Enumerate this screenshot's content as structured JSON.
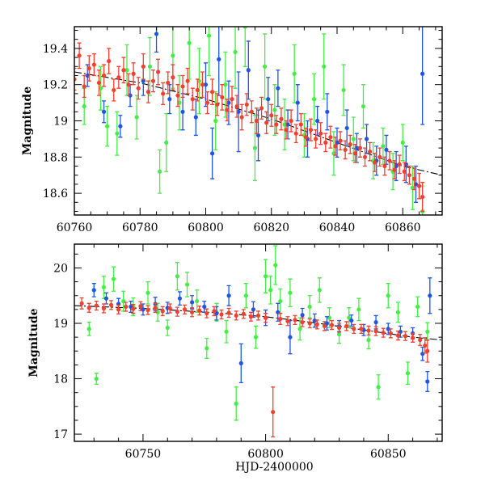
{
  "figure": {
    "colors": {
      "series_green": "#44ee44",
      "series_blue": "#1f55e0",
      "series_red": "#f04030",
      "fit_line": "#000000"
    }
  },
  "chart_data": [
    {
      "type": "scatter",
      "title": "",
      "xlabel": "",
      "ylabel": "Magnitude",
      "xlim": [
        60760,
        60872
      ],
      "ylim": [
        19.52,
        18.48
      ],
      "y_inverted": true,
      "grid": false,
      "legend": "none",
      "x_ticks": [
        60760,
        60780,
        60800,
        60820,
        60840,
        60860
      ],
      "x_tick_labels": [
        "60760",
        "60780",
        "60800",
        "60820",
        "60840",
        "60860"
      ],
      "y_ticks": [
        18.6,
        18.8,
        19.0,
        19.2,
        19.4
      ],
      "y_tick_labels": [
        "18.6",
        "18.8",
        "19",
        "19.2",
        "19.4"
      ],
      "fit_line": {
        "x": [
          60760,
          60780,
          60800,
          60820,
          60840,
          60860,
          60872
        ],
        "y": [
          19.27,
          19.21,
          19.12,
          19.01,
          18.88,
          18.75,
          18.7
        ]
      },
      "series": [
        {
          "color": "#44ee44",
          "x": [
            60763,
            60768,
            60770,
            60773,
            60776,
            60779,
            60783,
            60786,
            60788,
            60790,
            60792,
            60795,
            60798,
            60801,
            60803,
            60806,
            60809,
            60812,
            60815,
            60818,
            60821,
            60824,
            60827,
            60830,
            60833,
            60836,
            60839,
            60842,
            60845,
            60848,
            60851,
            60854,
            60857,
            60860,
            60863,
            60866
          ],
          "y": [
            19.08,
            19.18,
            18.97,
            18.93,
            19.28,
            19.02,
            19.3,
            18.72,
            18.88,
            19.36,
            19.1,
            19.43,
            19.22,
            19.47,
            19.0,
            19.2,
            19.38,
            19.52,
            18.85,
            19.3,
            19.06,
            18.98,
            19.26,
            18.92,
            19.12,
            19.3,
            18.82,
            19.17,
            18.9,
            19.08,
            18.78,
            18.86,
            18.72,
            18.88,
            18.63,
            18.5
          ],
          "err": [
            0.1,
            0.12,
            0.11,
            0.12,
            0.14,
            0.12,
            0.16,
            0.12,
            0.16,
            0.18,
            0.15,
            0.2,
            0.18,
            0.22,
            0.16,
            0.18,
            0.2,
            0.22,
            0.18,
            0.18,
            0.14,
            0.14,
            0.16,
            0.12,
            0.14,
            0.18,
            0.12,
            0.14,
            0.12,
            0.12,
            0.1,
            0.1,
            0.1,
            0.1,
            0.12,
            0.14
          ]
        },
        {
          "color": "#1f55e0",
          "x": [
            60764,
            60769,
            60774,
            60777,
            60781,
            60785,
            60789,
            60793,
            60797,
            60800,
            60802,
            60804,
            60807,
            60810,
            60813,
            60816,
            60819,
            60822,
            60825,
            60828,
            60831,
            60834,
            60837,
            60840,
            60843,
            60846,
            60849,
            60852,
            60855,
            60858,
            60861,
            60864,
            60866
          ],
          "y": [
            19.25,
            19.05,
            18.97,
            19.14,
            19.22,
            19.48,
            19.12,
            19.05,
            19.02,
            19.2,
            18.82,
            19.34,
            19.1,
            19.05,
            19.28,
            18.92,
            19.12,
            19.18,
            18.98,
            19.1,
            18.9,
            19.0,
            19.05,
            18.88,
            18.96,
            18.85,
            18.9,
            18.78,
            18.84,
            18.75,
            18.76,
            18.65,
            19.26
          ],
          "err": [
            0.06,
            0.06,
            0.06,
            0.06,
            0.08,
            0.1,
            0.08,
            0.1,
            0.1,
            0.12,
            0.14,
            0.2,
            0.12,
            0.22,
            0.16,
            0.14,
            0.12,
            0.1,
            0.08,
            0.1,
            0.1,
            0.08,
            0.1,
            0.08,
            0.1,
            0.08,
            0.08,
            0.08,
            0.08,
            0.08,
            0.1,
            0.1,
            0.28
          ]
        },
        {
          "color": "#f04030",
          "x": [
            60760,
            60761.5,
            60763,
            60764.5,
            60766,
            60767.5,
            60769,
            60770.5,
            60772,
            60773.5,
            60775,
            60776.5,
            60778,
            60779.5,
            60781,
            60782.5,
            60784,
            60785.5,
            60787,
            60788.5,
            60790,
            60791.5,
            60793,
            60794.5,
            60796,
            60797.5,
            60799,
            60800.5,
            60802,
            60803.5,
            60805,
            60806.5,
            60808,
            60809.5,
            60811,
            60812.5,
            60814,
            60815.5,
            60817,
            60818.5,
            60820,
            60821.5,
            60823,
            60824.5,
            60826,
            60827.5,
            60829,
            60830.5,
            60832,
            60833.5,
            60835,
            60836.5,
            60838,
            60839.5,
            60841,
            60842.5,
            60844,
            60845.5,
            60847,
            60848.5,
            60850,
            60851.5,
            60853,
            60854.5,
            60856,
            60857.5,
            60859,
            60860.5,
            60862,
            60863.5,
            60865,
            60866
          ],
          "y": [
            19.23,
            19.36,
            19.19,
            19.29,
            19.31,
            19.21,
            19.25,
            19.33,
            19.17,
            19.24,
            19.28,
            19.2,
            19.26,
            19.18,
            19.3,
            19.16,
            19.22,
            19.27,
            19.15,
            19.21,
            19.24,
            19.14,
            19.19,
            19.22,
            19.12,
            19.17,
            19.2,
            19.1,
            19.16,
            19.09,
            19.13,
            19.06,
            19.12,
            19.08,
            19.02,
            19.09,
            19.05,
            19.0,
            19.07,
            18.99,
            19.03,
            18.98,
            19.01,
            18.95,
            19.0,
            18.93,
            18.98,
            18.91,
            18.95,
            18.9,
            18.93,
            18.88,
            18.91,
            18.86,
            18.89,
            18.84,
            18.87,
            18.82,
            18.85,
            18.8,
            18.83,
            18.77,
            18.8,
            18.75,
            18.78,
            18.73,
            18.76,
            18.72,
            18.7,
            18.68,
            18.64,
            18.58
          ],
          "err": [
            0.06,
            0.07,
            0.06,
            0.07,
            0.06,
            0.07,
            0.06,
            0.07,
            0.06,
            0.06,
            0.07,
            0.06,
            0.06,
            0.06,
            0.07,
            0.06,
            0.06,
            0.07,
            0.06,
            0.06,
            0.07,
            0.06,
            0.06,
            0.07,
            0.06,
            0.06,
            0.07,
            0.06,
            0.07,
            0.06,
            0.07,
            0.06,
            0.07,
            0.06,
            0.07,
            0.06,
            0.06,
            0.07,
            0.06,
            0.06,
            0.06,
            0.05,
            0.06,
            0.05,
            0.06,
            0.05,
            0.06,
            0.05,
            0.06,
            0.05,
            0.06,
            0.05,
            0.06,
            0.05,
            0.05,
            0.05,
            0.05,
            0.05,
            0.05,
            0.05,
            0.05,
            0.05,
            0.05,
            0.05,
            0.05,
            0.05,
            0.05,
            0.05,
            0.05,
            0.06,
            0.07,
            0.08
          ]
        }
      ]
    },
    {
      "type": "scatter",
      "title": "",
      "xlabel": "HJD-2400000",
      "ylabel": "Magnitude",
      "xlim": [
        60722,
        60872
      ],
      "ylim": [
        20.43,
        16.87
      ],
      "y_inverted": true,
      "grid": false,
      "legend": "none",
      "x_ticks": [
        60750,
        60800,
        60850
      ],
      "x_tick_labels": [
        "60750",
        "60800",
        "60850"
      ],
      "y_ticks": [
        17,
        18,
        19,
        20
      ],
      "y_tick_labels": [
        "17",
        "18",
        "19",
        "20"
      ],
      "fit_line": {
        "x": [
          60722,
          60750,
          60780,
          60800,
          60820,
          60840,
          60860,
          60872
        ],
        "y": [
          19.32,
          19.27,
          19.19,
          19.12,
          19.01,
          18.88,
          18.75,
          18.7
        ]
      },
      "series": [
        {
          "color": "#44ee44",
          "x": [
            60728,
            60731,
            60734,
            60738,
            60742,
            60746,
            60752,
            60756,
            60760,
            60764,
            60768,
            60772,
            60776,
            60780,
            60784,
            60788,
            60792,
            60796,
            60800,
            60802,
            60804,
            60806,
            60810,
            60814,
            60818,
            60822,
            60826,
            60830,
            60834,
            60838,
            60842,
            60846,
            60850,
            60854,
            60858,
            60862,
            60866
          ],
          "y": [
            18.9,
            18.0,
            19.65,
            19.8,
            19.4,
            19.3,
            19.55,
            19.2,
            18.92,
            19.85,
            19.7,
            19.4,
            18.55,
            19.2,
            18.85,
            17.55,
            19.5,
            18.75,
            19.85,
            19.6,
            20.05,
            19.4,
            19.55,
            18.9,
            19.3,
            19.6,
            19.1,
            18.8,
            19.1,
            19.25,
            18.7,
            17.85,
            19.5,
            19.2,
            18.1,
            19.3,
            18.85
          ],
          "err": [
            0.12,
            0.1,
            0.2,
            0.22,
            0.18,
            0.16,
            0.2,
            0.16,
            0.14,
            0.25,
            0.22,
            0.2,
            0.18,
            0.16,
            0.2,
            0.3,
            0.22,
            0.2,
            0.3,
            0.25,
            0.35,
            0.22,
            0.25,
            0.2,
            0.2,
            0.22,
            0.18,
            0.16,
            0.18,
            0.2,
            0.16,
            0.22,
            0.22,
            0.18,
            0.2,
            0.18,
            0.16
          ]
        },
        {
          "color": "#1f55e0",
          "x": [
            60730,
            60735,
            60740,
            60745,
            60750,
            60755,
            60760,
            60765,
            60770,
            60775,
            60780,
            60785,
            60790,
            60795,
            60800,
            60805,
            60810,
            60815,
            60820,
            60825,
            60830,
            60835,
            60840,
            60845,
            60850,
            60855,
            60860,
            60864,
            60866,
            60867
          ],
          "y": [
            19.6,
            19.45,
            19.35,
            19.3,
            19.25,
            19.35,
            19.28,
            19.45,
            19.38,
            19.3,
            19.18,
            19.5,
            18.28,
            19.25,
            19.1,
            19.2,
            18.75,
            19.15,
            19.05,
            19.0,
            18.95,
            19.05,
            18.88,
            19.02,
            18.9,
            18.85,
            18.82,
            18.45,
            17.95,
            19.5
          ],
          "err": [
            0.12,
            0.1,
            0.1,
            0.1,
            0.1,
            0.12,
            0.1,
            0.12,
            0.12,
            0.1,
            0.12,
            0.18,
            0.35,
            0.14,
            0.14,
            0.16,
            0.3,
            0.12,
            0.12,
            0.12,
            0.1,
            0.1,
            0.1,
            0.12,
            0.1,
            0.1,
            0.1,
            0.12,
            0.18,
            0.32
          ]
        },
        {
          "color": "#f04030",
          "x": [
            60725,
            60728,
            60731,
            60734,
            60737,
            60740,
            60743,
            60746,
            60749,
            60752,
            60755,
            60758,
            60761,
            60764,
            60767,
            60770,
            60773,
            60776,
            60779,
            60782,
            60785,
            60788,
            60791,
            60794,
            60797,
            60800,
            60803,
            60806,
            60809,
            60812,
            60815,
            60818,
            60821,
            60824,
            60827,
            60830,
            60833,
            60836,
            60839,
            60842,
            60845,
            60848,
            60851,
            60854,
            60857,
            60860,
            60863,
            60865,
            60866
          ],
          "y": [
            19.36,
            19.28,
            19.32,
            19.27,
            19.33,
            19.25,
            19.3,
            19.26,
            19.31,
            19.24,
            19.28,
            19.22,
            19.27,
            19.21,
            19.25,
            19.2,
            19.23,
            19.18,
            19.22,
            19.16,
            19.19,
            19.14,
            19.17,
            19.12,
            19.14,
            19.1,
            17.4,
            19.08,
            19.04,
            19.06,
            19.02,
            19.0,
            18.98,
            18.95,
            18.97,
            18.92,
            18.95,
            18.9,
            18.9,
            18.87,
            18.86,
            18.83,
            18.82,
            18.78,
            18.77,
            18.74,
            18.7,
            18.6,
            18.5
          ],
          "err": [
            0.1,
            0.08,
            0.08,
            0.08,
            0.08,
            0.08,
            0.08,
            0.08,
            0.08,
            0.08,
            0.08,
            0.08,
            0.08,
            0.08,
            0.08,
            0.08,
            0.08,
            0.08,
            0.08,
            0.08,
            0.08,
            0.08,
            0.08,
            0.08,
            0.08,
            0.08,
            0.45,
            0.1,
            0.08,
            0.08,
            0.08,
            0.08,
            0.08,
            0.08,
            0.08,
            0.08,
            0.08,
            0.08,
            0.08,
            0.08,
            0.08,
            0.08,
            0.08,
            0.08,
            0.08,
            0.08,
            0.1,
            0.14,
            0.2
          ]
        }
      ]
    }
  ]
}
